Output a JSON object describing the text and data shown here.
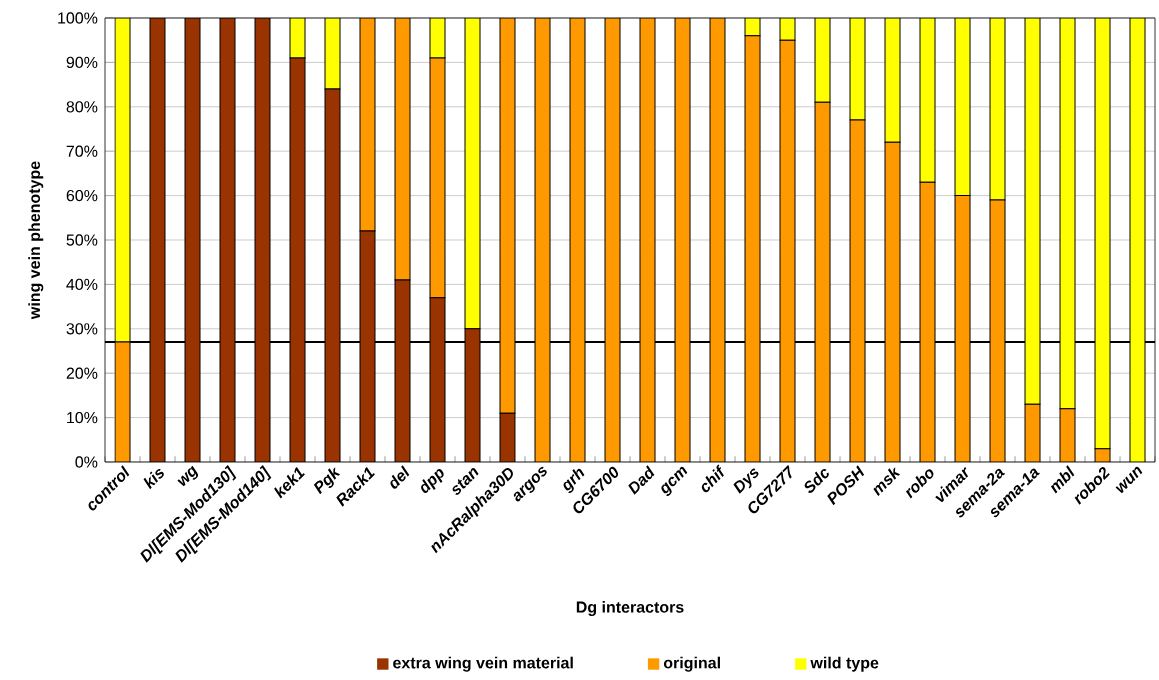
{
  "chart_data": {
    "type": "bar",
    "stacked": true,
    "xlabel": "Dg interactors",
    "ylabel": "wing vein phenotype",
    "categories": [
      "control",
      "kis",
      "wg",
      "Dl[EMS-Mod130]",
      "Dl[EMS-Mod140]",
      "kek1",
      "Pgk",
      "Rack1",
      "del",
      "dpp",
      "stan",
      "nAcRalpha30D",
      "argos",
      "grh",
      "CG6700",
      "Dad",
      "gcm",
      "chif",
      "Dys",
      "CG7277",
      "Sdc",
      "POSH",
      "msk",
      "robo",
      "vimar",
      "sema-2a",
      "sema-1a",
      "mbl",
      "robo2",
      "wun"
    ],
    "series": [
      {
        "name": "extra wing vein material",
        "color": "#993300",
        "values": [
          0,
          100,
          100,
          100,
          100,
          91,
          84,
          52,
          41,
          37,
          30,
          11,
          0,
          0,
          0,
          0,
          0,
          0,
          0,
          0,
          0,
          0,
          0,
          0,
          0,
          0,
          0,
          0,
          0,
          0
        ]
      },
      {
        "name": "original",
        "color": "#ff9900",
        "values": [
          27,
          0,
          0,
          0,
          0,
          0,
          0,
          48,
          59,
          54,
          0,
          89,
          100,
          100,
          100,
          100,
          100,
          100,
          96,
          95,
          81,
          77,
          72,
          63,
          60,
          59,
          13,
          12,
          3,
          0
        ]
      },
      {
        "name": "wild type",
        "color": "#ffff00",
        "values": [
          73,
          0,
          0,
          0,
          0,
          9,
          16,
          0,
          0,
          9,
          70,
          0,
          0,
          0,
          0,
          0,
          0,
          0,
          4,
          5,
          19,
          23,
          28,
          37,
          40,
          41,
          87,
          88,
          97,
          100
        ]
      }
    ],
    "ylim": [
      0,
      100
    ],
    "yticks": [
      {
        "value": 0,
        "label": "0%"
      },
      {
        "value": 10,
        "label": "10%"
      },
      {
        "value": 20,
        "label": "20%"
      },
      {
        "value": 30,
        "label": "30%"
      },
      {
        "value": 40,
        "label": "40%"
      },
      {
        "value": 50,
        "label": "50%"
      },
      {
        "value": 60,
        "label": "60%"
      },
      {
        "value": 70,
        "label": "70%"
      },
      {
        "value": 80,
        "label": "80%"
      },
      {
        "value": 90,
        "label": "90%"
      },
      {
        "value": 100,
        "label": "100%"
      }
    ],
    "grid": "y",
    "legend": "bottom",
    "ref_lines": [
      {
        "axis": "y",
        "value": 27,
        "color": "#000000"
      }
    ]
  }
}
